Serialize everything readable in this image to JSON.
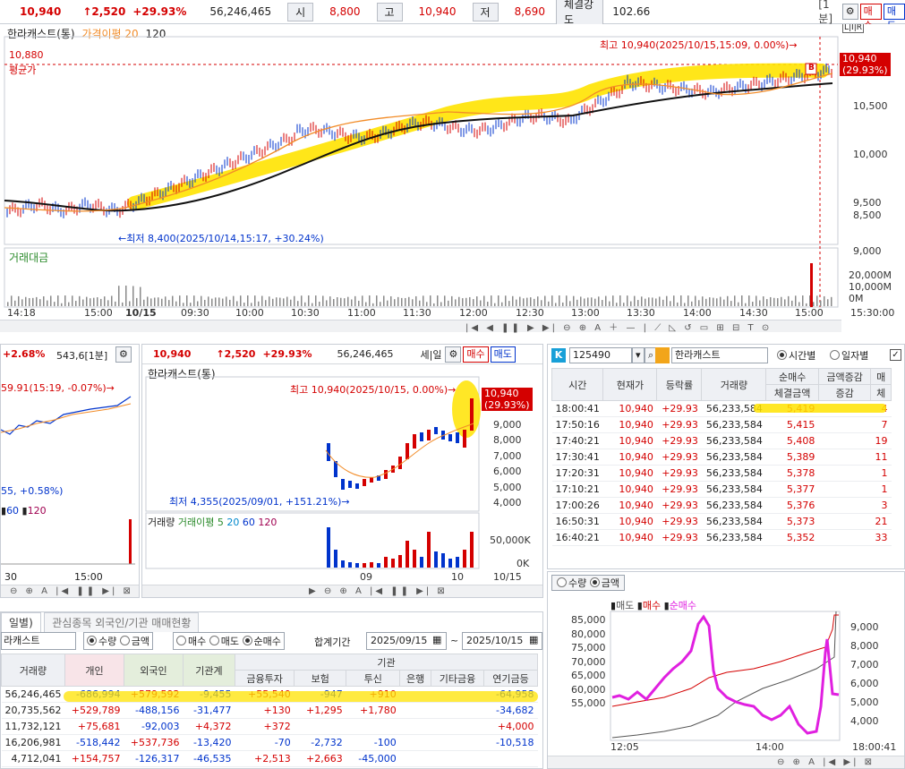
{
  "header": {
    "price": "10,940",
    "change": "↑2,520",
    "pct": "+29.93%",
    "volume": "56,246,465",
    "open_label": "시",
    "open": "8,800",
    "high_label": "고",
    "high": "10,940",
    "low_label": "저",
    "low": "8,690",
    "strength_label": "체결강도",
    "strength": "102.66",
    "interval": "[1분]",
    "buy": "매수",
    "sell": "매도"
  },
  "main_chart": {
    "name": "한라캐스트(통)",
    "ma_label": "가격이평 20",
    "ma2_label": "120",
    "box_label": "L|I|R",
    "high_note": "최고 10,940(2025/10/15,15:09, 0.00%)→",
    "low_note": "←최저 8,400(2025/10/14,15:17, +30.24%)",
    "avg_value": "10,880",
    "avg_label": "평균가",
    "price_tag": "10,940",
    "price_tag_pct": "(29.93%)",
    "b_marker": "B",
    "y_ticks": [
      "10,500",
      "10,000",
      "9,500",
      "9,000",
      "8,500"
    ],
    "volume_label": "거래대금",
    "vol_ticks": [
      "20,000M",
      "10,000M",
      "0M"
    ],
    "x_ticks": [
      "14:18",
      "15:00",
      "10/15",
      "09:30",
      "10:00",
      "10:30",
      "11:00",
      "11:30",
      "12:00",
      "12:30",
      "13:00",
      "13:30",
      "14:00",
      "14:30",
      "15:00",
      "15:30:00"
    ]
  },
  "small_left": {
    "header_pct": "+2.68%",
    "header_val": "543,6[1분]",
    "note": "59.91(15:19, -0.07%)→",
    "note2": "55, +0.58%)",
    "ma_labels": [
      "60",
      "120"
    ],
    "x_ticks": [
      "30",
      "15:00"
    ]
  },
  "daily_chart": {
    "price": "10,940",
    "change": "↑2,520",
    "pct": "+29.93%",
    "volume": "56,246,465",
    "interval": "세|일",
    "buy": "매수",
    "sell": "매도",
    "name": "한라캐스트(통)",
    "high_note": "최고 10,940(2025/10/15, 0.00%)→",
    "low_note": "최저 4,355(2025/09/01, +151.21%)→",
    "price_tag": "10,940",
    "price_tag_pct": "(29.93%)",
    "y_ticks": [
      "9,000",
      "8,000",
      "7,000",
      "6,000",
      "5,000",
      "4,000"
    ],
    "vol_label": "거래량",
    "vol_ma_label": "거래이평 5",
    "vol_ma": [
      "20",
      "60",
      "120"
    ],
    "vol_ticks": [
      "50,000K",
      "0K"
    ],
    "x_ticks": [
      "09",
      "10",
      "10/15"
    ]
  },
  "ticks_panel": {
    "code": "125490",
    "name": "한라캐스트",
    "radio_time": "시간별",
    "radio_date": "일자별",
    "headers": [
      "시간",
      "현재가",
      "등락률",
      "거래량",
      "순매수",
      "금액증감",
      "매"
    ],
    "subheaders": [
      "체결금액",
      "증감",
      "체"
    ],
    "rows": [
      [
        "18:00:41",
        "10,940",
        "+29.93",
        "56,233,584",
        "5,419",
        "4"
      ],
      [
        "17:50:16",
        "10,940",
        "+29.93",
        "56,233,584",
        "5,415",
        "7"
      ],
      [
        "17:40:21",
        "10,940",
        "+29.93",
        "56,233,584",
        "5,408",
        "19"
      ],
      [
        "17:30:41",
        "10,940",
        "+29.93",
        "56,233,584",
        "5,389",
        "11"
      ],
      [
        "17:20:31",
        "10,940",
        "+29.93",
        "56,233,584",
        "5,378",
        "1"
      ],
      [
        "17:10:21",
        "10,940",
        "+29.93",
        "56,233,584",
        "5,377",
        "1"
      ],
      [
        "17:00:26",
        "10,940",
        "+29.93",
        "56,233,584",
        "5,376",
        "3"
      ],
      [
        "16:50:31",
        "10,940",
        "+29.93",
        "56,233,584",
        "5,373",
        "21"
      ],
      [
        "16:40:21",
        "10,940",
        "+29.93",
        "56,233,584",
        "5,352",
        "33"
      ]
    ]
  },
  "flow_chart": {
    "radio_qty": "수량",
    "radio_amt": "금액",
    "legend": [
      "매도",
      "매수",
      "순매수"
    ],
    "left_ticks": [
      "85,000",
      "80,000",
      "75,000",
      "70,000",
      "65,000",
      "60,000",
      "55,000"
    ],
    "right_ticks": [
      "9,000",
      "8,000",
      "7,000",
      "6,000",
      "5,000",
      "4,000"
    ],
    "x_ticks": [
      "12:05",
      "14:00",
      "18:00:41"
    ]
  },
  "investor_panel": {
    "tab1": "일별)",
    "tab2": "관심종목 외국인/기관 매매현황",
    "stock": "라캐스트",
    "options": [
      "수량",
      "금액",
      "매수",
      "매도",
      "순매수"
    ],
    "period_label": "합계기간",
    "from": "2025/09/15",
    "to": "2025/10/15",
    "inst_header": "기관",
    "headers": [
      "거래량",
      "개인",
      "외국인",
      "기관계",
      "금융투자",
      "보험",
      "투신",
      "은행",
      "기타금융",
      "연기금등"
    ],
    "rows": [
      [
        "56,246,465",
        "-686,994",
        "+579,592",
        "-9,455",
        "+55,540",
        "-947",
        "+910",
        "",
        "",
        "-64,958"
      ],
      [
        "20,735,562",
        "+529,789",
        "-488,156",
        "-31,477",
        "+130",
        "+1,295",
        "+1,780",
        "",
        "",
        "-34,682"
      ],
      [
        "11,732,121",
        "+75,681",
        "-92,003",
        "+4,372",
        "+372",
        "",
        "",
        "",
        "",
        "+4,000"
      ],
      [
        "16,206,981",
        "-518,442",
        "+537,736",
        "-13,420",
        "-70",
        "-2,732",
        "-100",
        "",
        "",
        "-10,518"
      ],
      [
        "4,712,041",
        "+154,757",
        "-126,317",
        "-46,535",
        "+2,513",
        "+2,663",
        "-45,000",
        "",
        "",
        ""
      ]
    ]
  },
  "colors": {
    "up": "#d40000",
    "down": "#0033cc",
    "highlight": "#ffe300",
    "ma20": "#f28c28",
    "ma120": "#111111",
    "net": "#e020e0"
  }
}
